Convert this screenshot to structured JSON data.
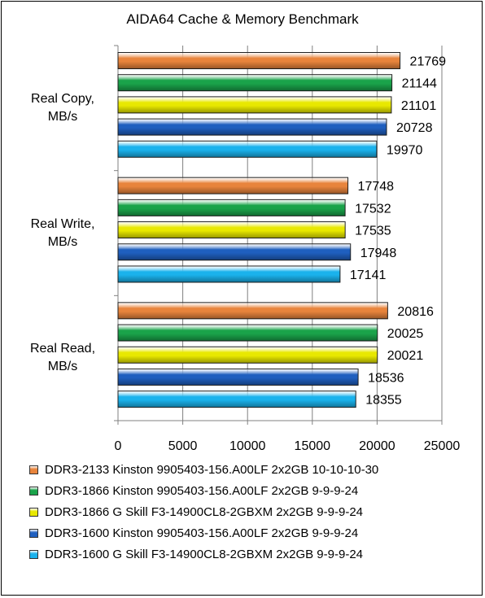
{
  "chart_data": {
    "type": "bar",
    "orientation": "horizontal",
    "title": "AIDA64 Cache & Memory Benchmark",
    "categories": [
      "Real Copy,\nMB/s",
      "Real Write,\nMB/s",
      "Real Read,\nMB/s"
    ],
    "series": [
      {
        "name": "DDR3-2133 Kinston 9905403-156.A00LF 2x2GB 10-10-10-30",
        "color": "#e8843c",
        "values": [
          21769,
          17748,
          20816
        ]
      },
      {
        "name": "DDR3-1866 Kinston 9905403-156.A00LF 2x2GB 9-9-9-24",
        "color": "#1aa34a",
        "values": [
          21144,
          17532,
          20025
        ]
      },
      {
        "name": "DDR3-1866 G Skill F3-14900CL8-2GBXM 2x2GB 9-9-9-24",
        "color": "#e8e800",
        "values": [
          21101,
          17535,
          20021
        ]
      },
      {
        "name": "DDR3-1600 Kinston 9905403-156.A00LF 2x2GB 9-9-9-24",
        "color": "#1f5fbf",
        "values": [
          20728,
          17948,
          18536
        ]
      },
      {
        "name": "DDR3-1600 G Skill F3-14900CL8-2GBXM 2x2GB 9-9-9-24",
        "color": "#1ab2ec",
        "values": [
          19970,
          17141,
          18355
        ]
      }
    ],
    "xlim": [
      0,
      25000
    ],
    "xticks": [
      0,
      5000,
      10000,
      15000,
      20000,
      25000
    ],
    "grid": true,
    "legend_position": "bottom"
  }
}
